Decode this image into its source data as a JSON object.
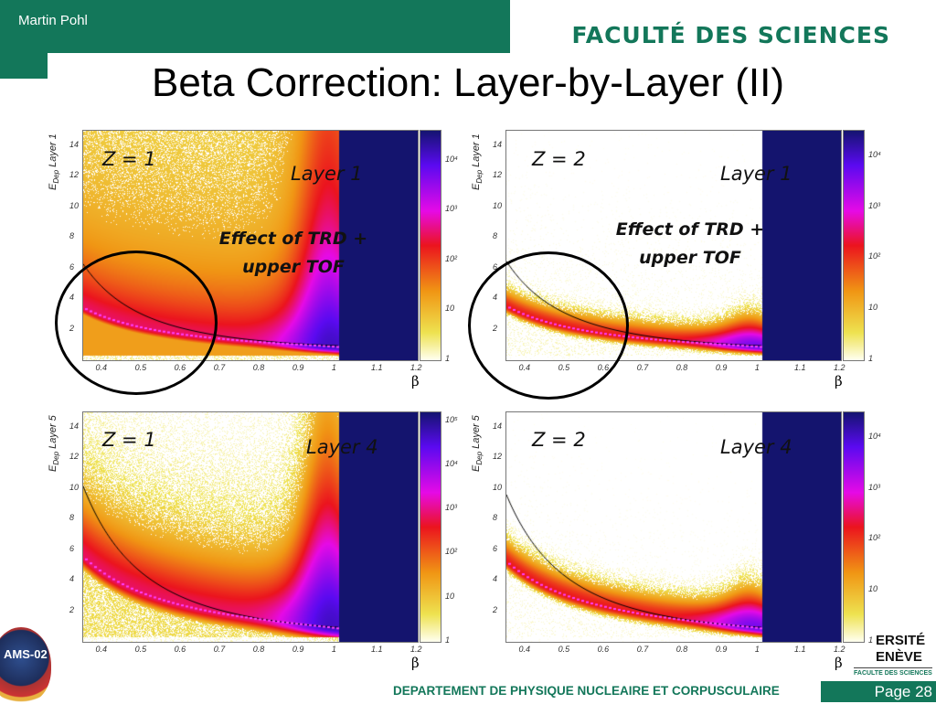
{
  "header": {
    "author": "Martin Pohl",
    "faculty": "FACULTÉ DES SCIENCES"
  },
  "title": "Beta Correction: Layer-by-Layer (II)",
  "footer": {
    "department": "DEPARTEMENT DE PHYSIQUE NUCLEAIRE ET CORPUSCULAIRE",
    "page": "Page 28"
  },
  "logos": {
    "ams": "AMS-02",
    "unige": [
      "ERSITÉ",
      "ENÈVE"
    ],
    "unige_sub": "FACULTE DES SCIENCES"
  },
  "chart_data": [
    {
      "type": "heatmap",
      "panel": "top-left",
      "charge_label": "Z = 1",
      "layer_label": "Layer 1",
      "annotation": [
        "Effect of TRD +",
        "upper TOF"
      ],
      "ylabel": "E_Dep Layer 1",
      "ylabel_main": "E",
      "ylabel_sub": "Dep",
      "ylabel_rest": " Layer 1",
      "xlabel": "β",
      "xlim": [
        0.35,
        1.2
      ],
      "ylim": [
        0,
        15
      ],
      "xticks": [
        "0.4",
        "0.5",
        "0.6",
        "0.7",
        "0.8",
        "0.9",
        "1",
        "1.1",
        "1.2"
      ],
      "yticks": [
        "2",
        "4",
        "6",
        "8",
        "10",
        "12",
        "14"
      ],
      "zticks": [
        "1",
        "10",
        "10²",
        "10³",
        "10⁴"
      ],
      "zlog_max": 4.6,
      "highlight": "circle low-beta region"
    },
    {
      "type": "heatmap",
      "panel": "top-right",
      "charge_label": "Z = 2",
      "layer_label": "Layer 1",
      "annotation": [
        "Effect of TRD +",
        "upper TOF"
      ],
      "ylabel": "E_Dep Layer 1",
      "ylabel_main": "E",
      "ylabel_sub": "Dep",
      "ylabel_rest": " Layer 1",
      "xlabel": "β",
      "xlim": [
        0.35,
        1.2
      ],
      "ylim": [
        0,
        15
      ],
      "xticks": [
        "0.4",
        "0.5",
        "0.6",
        "0.7",
        "0.8",
        "0.9",
        "1",
        "1.1",
        "1.2"
      ],
      "yticks": [
        "2",
        "4",
        "6",
        "8",
        "10",
        "12",
        "14"
      ],
      "zticks": [
        "1",
        "10",
        "10²",
        "10³",
        "10⁴"
      ],
      "zlog_max": 4.5,
      "highlight": "circle low-beta region"
    },
    {
      "type": "heatmap",
      "panel": "bottom-left",
      "charge_label": "Z = 1",
      "layer_label": "Layer 4",
      "ylabel": "E_Dep Layer 5",
      "ylabel_main": "E",
      "ylabel_sub": "Dep",
      "ylabel_rest": " Layer 5",
      "xlabel": "β",
      "xlim": [
        0.35,
        1.2
      ],
      "ylim": [
        0,
        15
      ],
      "xticks": [
        "0.4",
        "0.5",
        "0.6",
        "0.7",
        "0.8",
        "0.9",
        "1",
        "1.1",
        "1.2"
      ],
      "yticks": [
        "2",
        "4",
        "6",
        "8",
        "10",
        "12",
        "14"
      ],
      "zticks": [
        "1",
        "10",
        "10²",
        "10³",
        "10⁴",
        "10⁵"
      ],
      "zlog_max": 5.2
    },
    {
      "type": "heatmap",
      "panel": "bottom-right",
      "charge_label": "Z = 2",
      "layer_label": "Layer 4",
      "ylabel": "E_Dep Layer 5",
      "ylabel_main": "E",
      "ylabel_sub": "Dep",
      "ylabel_rest": " Layer 5",
      "xlabel": "β",
      "xlim": [
        0.35,
        1.2
      ],
      "ylim": [
        0,
        15
      ],
      "xticks": [
        "0.4",
        "0.5",
        "0.6",
        "0.7",
        "0.8",
        "0.9",
        "1",
        "1.1",
        "1.2"
      ],
      "yticks": [
        "2",
        "4",
        "6",
        "8",
        "10",
        "12",
        "14"
      ],
      "zticks": [
        "1",
        "10",
        "10²",
        "10³",
        "10⁴"
      ],
      "zlog_max": 4.5
    }
  ]
}
